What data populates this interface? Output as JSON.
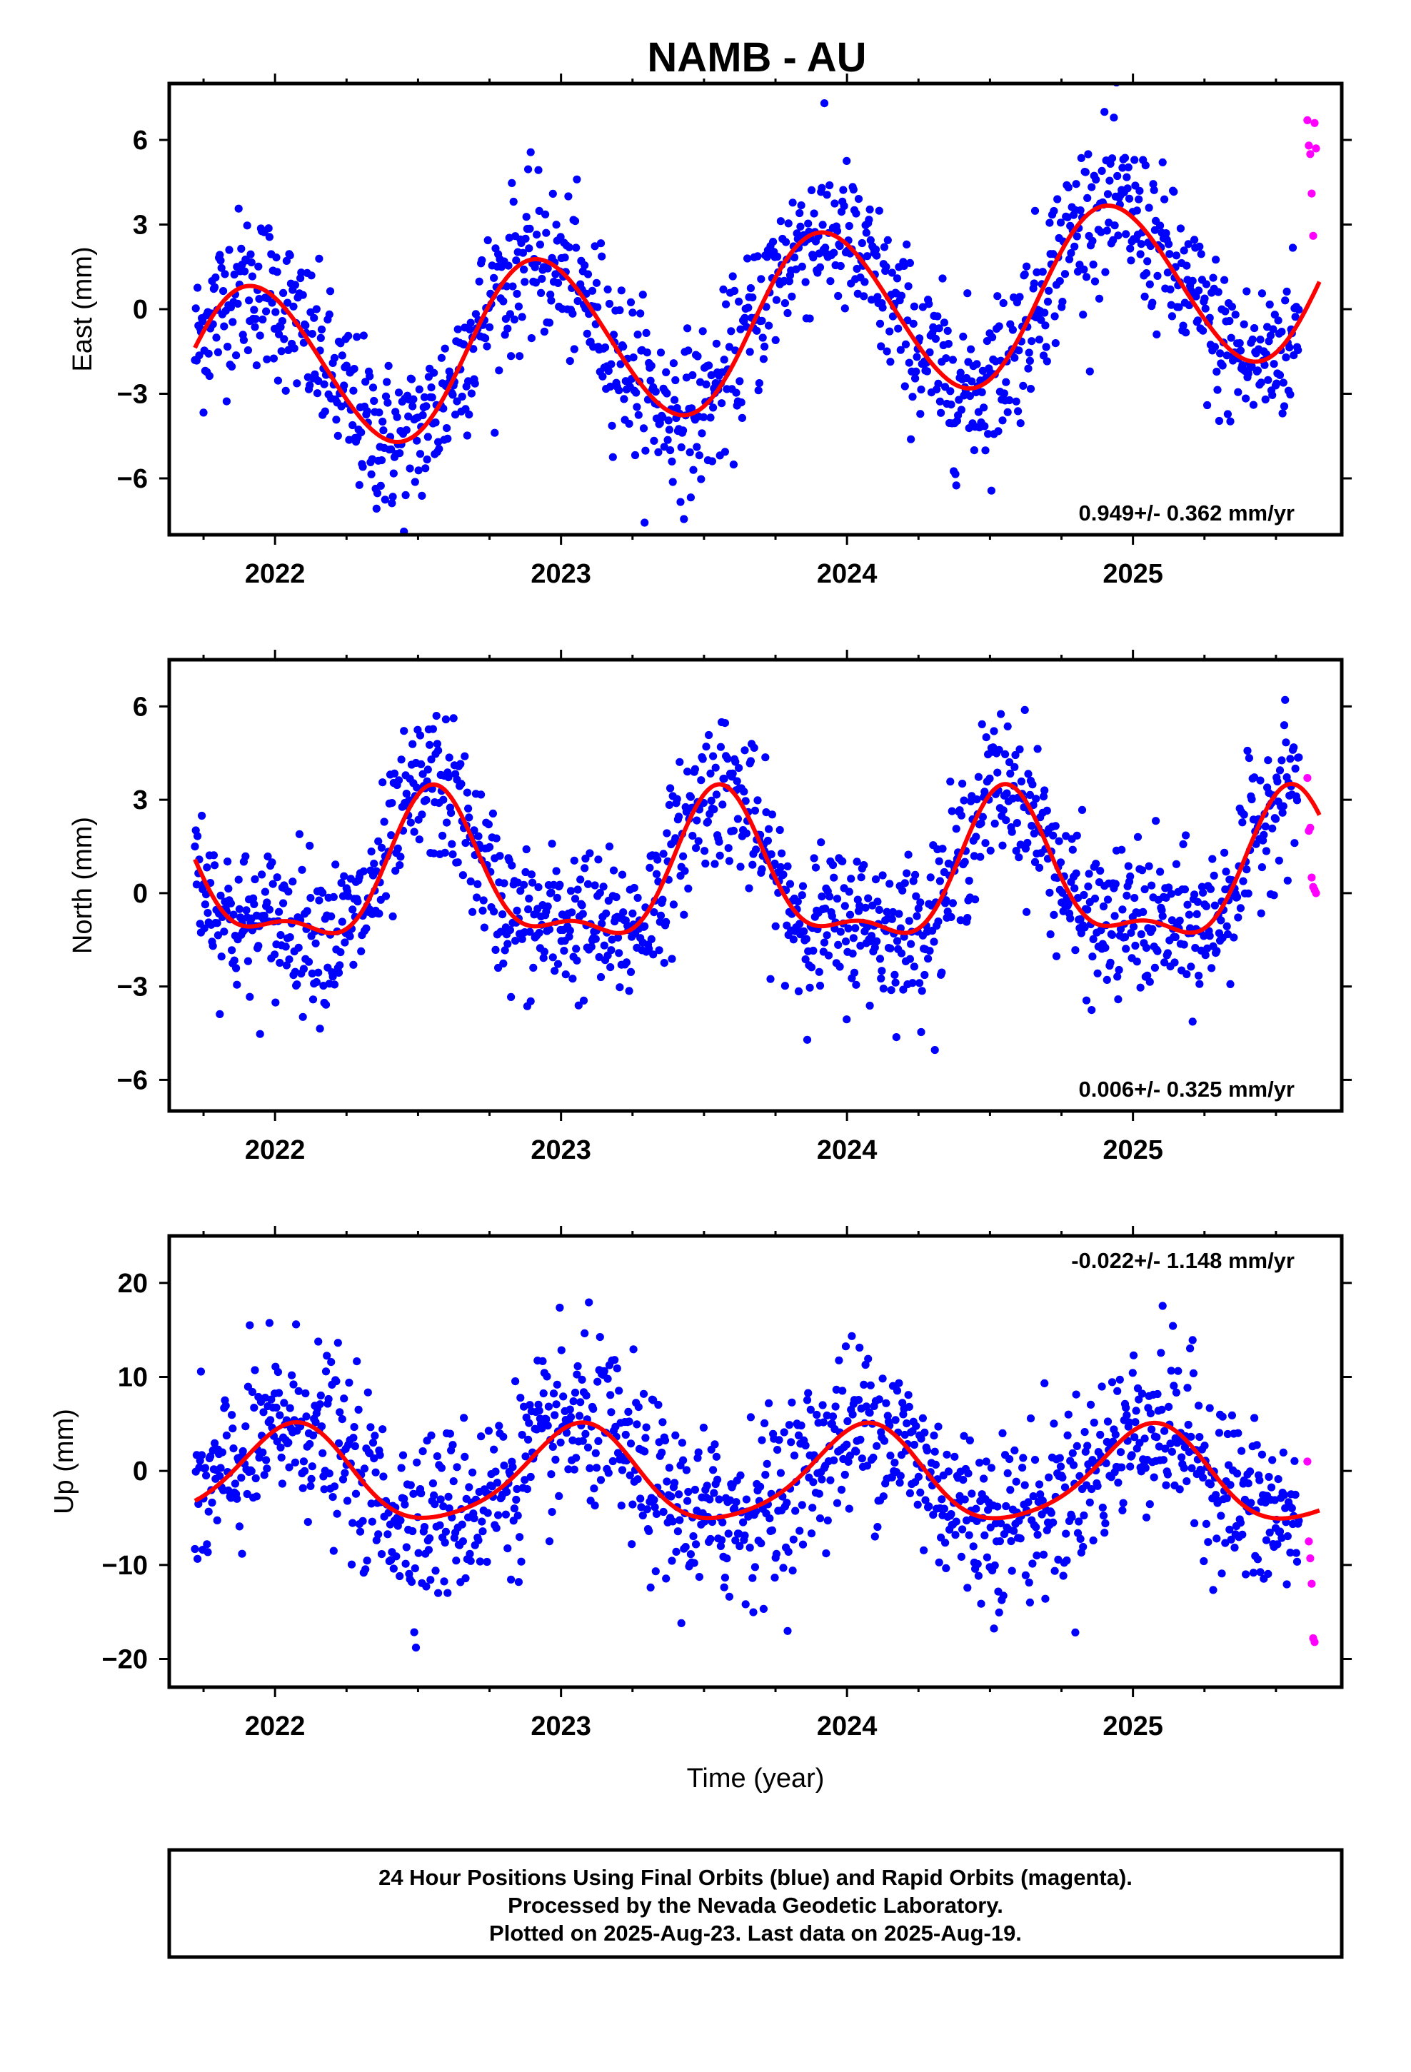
{
  "title": "NAMB - AU",
  "footer": {
    "lines": [
      "24 Hour Positions Using Final Orbits (blue) and Rapid Orbits (magenta).",
      "Processed by the Nevada Geodetic Laboratory.",
      "Plotted on 2025-Aug-23. Last data on 2025-Aug-19."
    ]
  },
  "colors": {
    "final": "#0000ff",
    "rapid": "#ff00ff",
    "model": "#ff0000",
    "frame": "#000000"
  },
  "chart_data": [
    {
      "type": "scatter",
      "ylabel": "East (mm)",
      "xlabel": "",
      "xlim": [
        2021.63,
        2025.73
      ],
      "ylim": [
        -8,
        8
      ],
      "xticks": [
        2022,
        2023,
        2024,
        2025
      ],
      "yticks": [
        -6,
        -3,
        0,
        3,
        6
      ],
      "rate_text": "0.949+/- 0.362 mm/yr",
      "rate_position": "bottom-right",
      "model": {
        "rate": 0.949,
        "offset": -0.5,
        "annual_amp": 3.0,
        "annual_peak": 0.92,
        "semiannual_amp": 0.15,
        "semiannual_peak": 0.3,
        "ref_year": 2023.7
      },
      "scatter_noise": 1.4,
      "series": [
        {
          "name": "Final Orbits",
          "color": "#0000ff",
          "x_range": [
            2021.72,
            2025.58
          ],
          "n_points": 1290
        },
        {
          "name": "Rapid Orbits",
          "color": "#ff00ff",
          "x": [
            2025.61,
            2025.615,
            2025.62,
            2025.625,
            2025.63,
            2025.635,
            2025.64
          ],
          "y": [
            6.7,
            5.8,
            5.5,
            4.1,
            2.6,
            6.6,
            5.7
          ]
        }
      ]
    },
    {
      "type": "scatter",
      "ylabel": "North (mm)",
      "xlabel": "",
      "xlim": [
        2021.63,
        2025.73
      ],
      "ylim": [
        -7,
        7.5
      ],
      "xticks": [
        2022,
        2023,
        2024,
        2025
      ],
      "yticks": [
        -6,
        -3,
        0,
        3,
        6
      ],
      "rate_text": "0.006+/- 0.325 mm/yr",
      "rate_position": "bottom-right",
      "model": {
        "rate": 0.006,
        "offset": 0.4,
        "annual_amp": 2.2,
        "annual_peak": 0.56,
        "semiannual_amp": 0.9,
        "semiannual_peak": 0.05,
        "ref_year": 2023.7
      },
      "scatter_noise": 1.2,
      "series": [
        {
          "name": "Final Orbits",
          "color": "#0000ff",
          "x_range": [
            2021.72,
            2025.58
          ],
          "n_points": 1290
        },
        {
          "name": "Rapid Orbits",
          "color": "#ff00ff",
          "x": [
            2025.61,
            2025.615,
            2025.62,
            2025.625,
            2025.63,
            2025.635,
            2025.64
          ],
          "y": [
            3.7,
            2.0,
            2.1,
            0.5,
            0.2,
            0.1,
            0.0
          ]
        }
      ]
    },
    {
      "type": "scatter",
      "ylabel": "Up (mm)",
      "xlabel": "Time (year)",
      "xlim": [
        2021.63,
        2025.73
      ],
      "ylim": [
        -23,
        25
      ],
      "xticks": [
        2022,
        2023,
        2024,
        2025
      ],
      "yticks": [
        -20,
        -10,
        0,
        10,
        20
      ],
      "rate_text": "-0.022+/- 1.148 mm/yr",
      "rate_position": "top-right",
      "model": {
        "rate": -0.022,
        "offset": -0.6,
        "annual_amp": 5.0,
        "annual_peak": 0.06,
        "semiannual_amp": 0.8,
        "semiannual_peak": 0.1,
        "ref_year": 2023.7
      },
      "scatter_noise": 4.6,
      "series": [
        {
          "name": "Final Orbits",
          "color": "#0000ff",
          "x_range": [
            2021.72,
            2025.58
          ],
          "n_points": 1290
        },
        {
          "name": "Rapid Orbits",
          "color": "#ff00ff",
          "x": [
            2025.61,
            2025.615,
            2025.62,
            2025.625,
            2025.63,
            2025.635
          ],
          "y": [
            1.0,
            -7.5,
            -9.3,
            -12.0,
            -17.8,
            -18.2
          ]
        }
      ]
    }
  ]
}
